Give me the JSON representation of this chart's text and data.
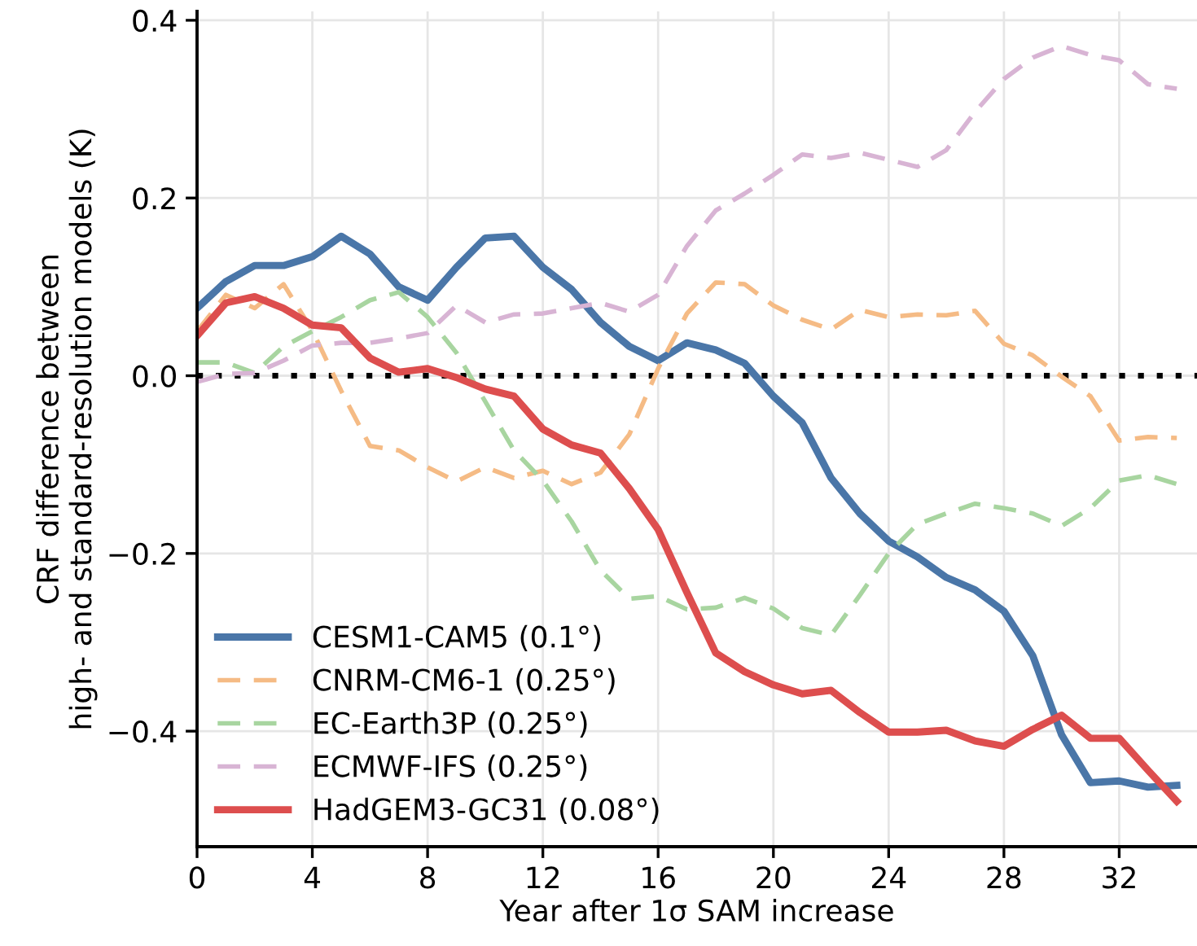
{
  "chart_data": {
    "type": "line",
    "xlabel": "Year after 1σ SAM increase",
    "ylabel": "CRF difference between\nhigh- and standard-resolution models (K)",
    "x": [
      0,
      1,
      2,
      3,
      4,
      5,
      6,
      7,
      8,
      9,
      10,
      11,
      12,
      13,
      14,
      15,
      16,
      17,
      18,
      19,
      20,
      21,
      22,
      23,
      24,
      25,
      26,
      27,
      28,
      29,
      30,
      31,
      32,
      33,
      34
    ],
    "series": [
      {
        "name": "CESM1-CAM5 (0.1°)",
        "color": "#4a76a8",
        "line_style": "solid",
        "values": [
          0.076,
          0.106,
          0.124,
          0.124,
          0.134,
          0.157,
          0.137,
          0.1,
          0.085,
          0.122,
          0.155,
          0.157,
          0.122,
          0.097,
          0.06,
          0.033,
          0.017,
          0.037,
          0.029,
          0.014,
          -0.023,
          -0.053,
          -0.115,
          -0.155,
          -0.186,
          -0.204,
          -0.227,
          -0.241,
          -0.265,
          -0.315,
          -0.404,
          -0.458,
          -0.456,
          -0.463,
          -0.461
        ]
      },
      {
        "name": "CNRM-CM6-1 (0.25°)",
        "color": "#f5bb85",
        "line_style": "dashed",
        "values": [
          0.05,
          0.091,
          0.076,
          0.103,
          0.051,
          -0.017,
          -0.079,
          -0.084,
          -0.103,
          -0.119,
          -0.103,
          -0.115,
          -0.107,
          -0.122,
          -0.109,
          -0.066,
          0.008,
          0.07,
          0.105,
          0.103,
          0.079,
          0.063,
          0.052,
          0.074,
          0.066,
          0.069,
          0.068,
          0.073,
          0.036,
          0.023,
          -0.001,
          -0.023,
          -0.073,
          -0.069,
          -0.07
        ]
      },
      {
        "name": "EC-Earth3P (0.25°)",
        "color": "#a8d5a0",
        "line_style": "dashed",
        "values": [
          0.015,
          0.015,
          0.003,
          0.033,
          0.05,
          0.066,
          0.085,
          0.094,
          0.066,
          0.026,
          -0.029,
          -0.084,
          -0.118,
          -0.164,
          -0.219,
          -0.251,
          -0.248,
          -0.263,
          -0.261,
          -0.25,
          -0.262,
          -0.284,
          -0.292,
          -0.247,
          -0.2,
          -0.167,
          -0.155,
          -0.144,
          -0.149,
          -0.155,
          -0.169,
          -0.149,
          -0.118,
          -0.112,
          -0.122
        ]
      },
      {
        "name": "ECMWF-IFS (0.25°)",
        "color": "#d8b4d4",
        "line_style": "dashed",
        "values": [
          -0.007,
          0.002,
          0.003,
          0.017,
          0.034,
          0.037,
          0.037,
          0.042,
          0.048,
          0.079,
          0.06,
          0.069,
          0.07,
          0.076,
          0.082,
          0.072,
          0.091,
          0.146,
          0.186,
          0.205,
          0.226,
          0.249,
          0.245,
          0.251,
          0.243,
          0.235,
          0.254,
          0.297,
          0.334,
          0.358,
          0.371,
          0.361,
          0.355,
          0.328,
          0.323
        ]
      },
      {
        "name": "HadGEM3-GC31 (0.08°)",
        "color": "#dd4e4e",
        "line_style": "solid",
        "values": [
          0.045,
          0.082,
          0.089,
          0.076,
          0.057,
          0.054,
          0.02,
          0.004,
          0.008,
          -0.002,
          -0.015,
          -0.023,
          -0.06,
          -0.078,
          -0.087,
          -0.127,
          -0.173,
          -0.244,
          -0.312,
          -0.333,
          -0.348,
          -0.358,
          -0.354,
          -0.379,
          -0.401,
          -0.401,
          -0.399,
          -0.411,
          -0.417,
          -0.398,
          -0.382,
          -0.408,
          -0.408,
          -0.444,
          -0.479
        ]
      }
    ],
    "xlim": [
      0,
      34.7
    ],
    "ylim": [
      -0.53,
      0.41
    ],
    "xticks": [
      0,
      4,
      8,
      12,
      16,
      20,
      24,
      28,
      32
    ],
    "yticks": [
      {
        "value": -0.4,
        "label": "−0.4"
      },
      {
        "value": -0.2,
        "label": "−0.2"
      },
      {
        "value": 0.0,
        "label": "0.0"
      },
      {
        "value": 0.2,
        "label": "0.2"
      },
      {
        "value": 0.4,
        "label": "0.4"
      }
    ],
    "ref_lines": [
      {
        "axis": "y",
        "value": 0,
        "label": null,
        "color": "#000000",
        "line_style": "dotted"
      }
    ],
    "grid": true,
    "legend": "bottom left",
    "marker": "none"
  }
}
